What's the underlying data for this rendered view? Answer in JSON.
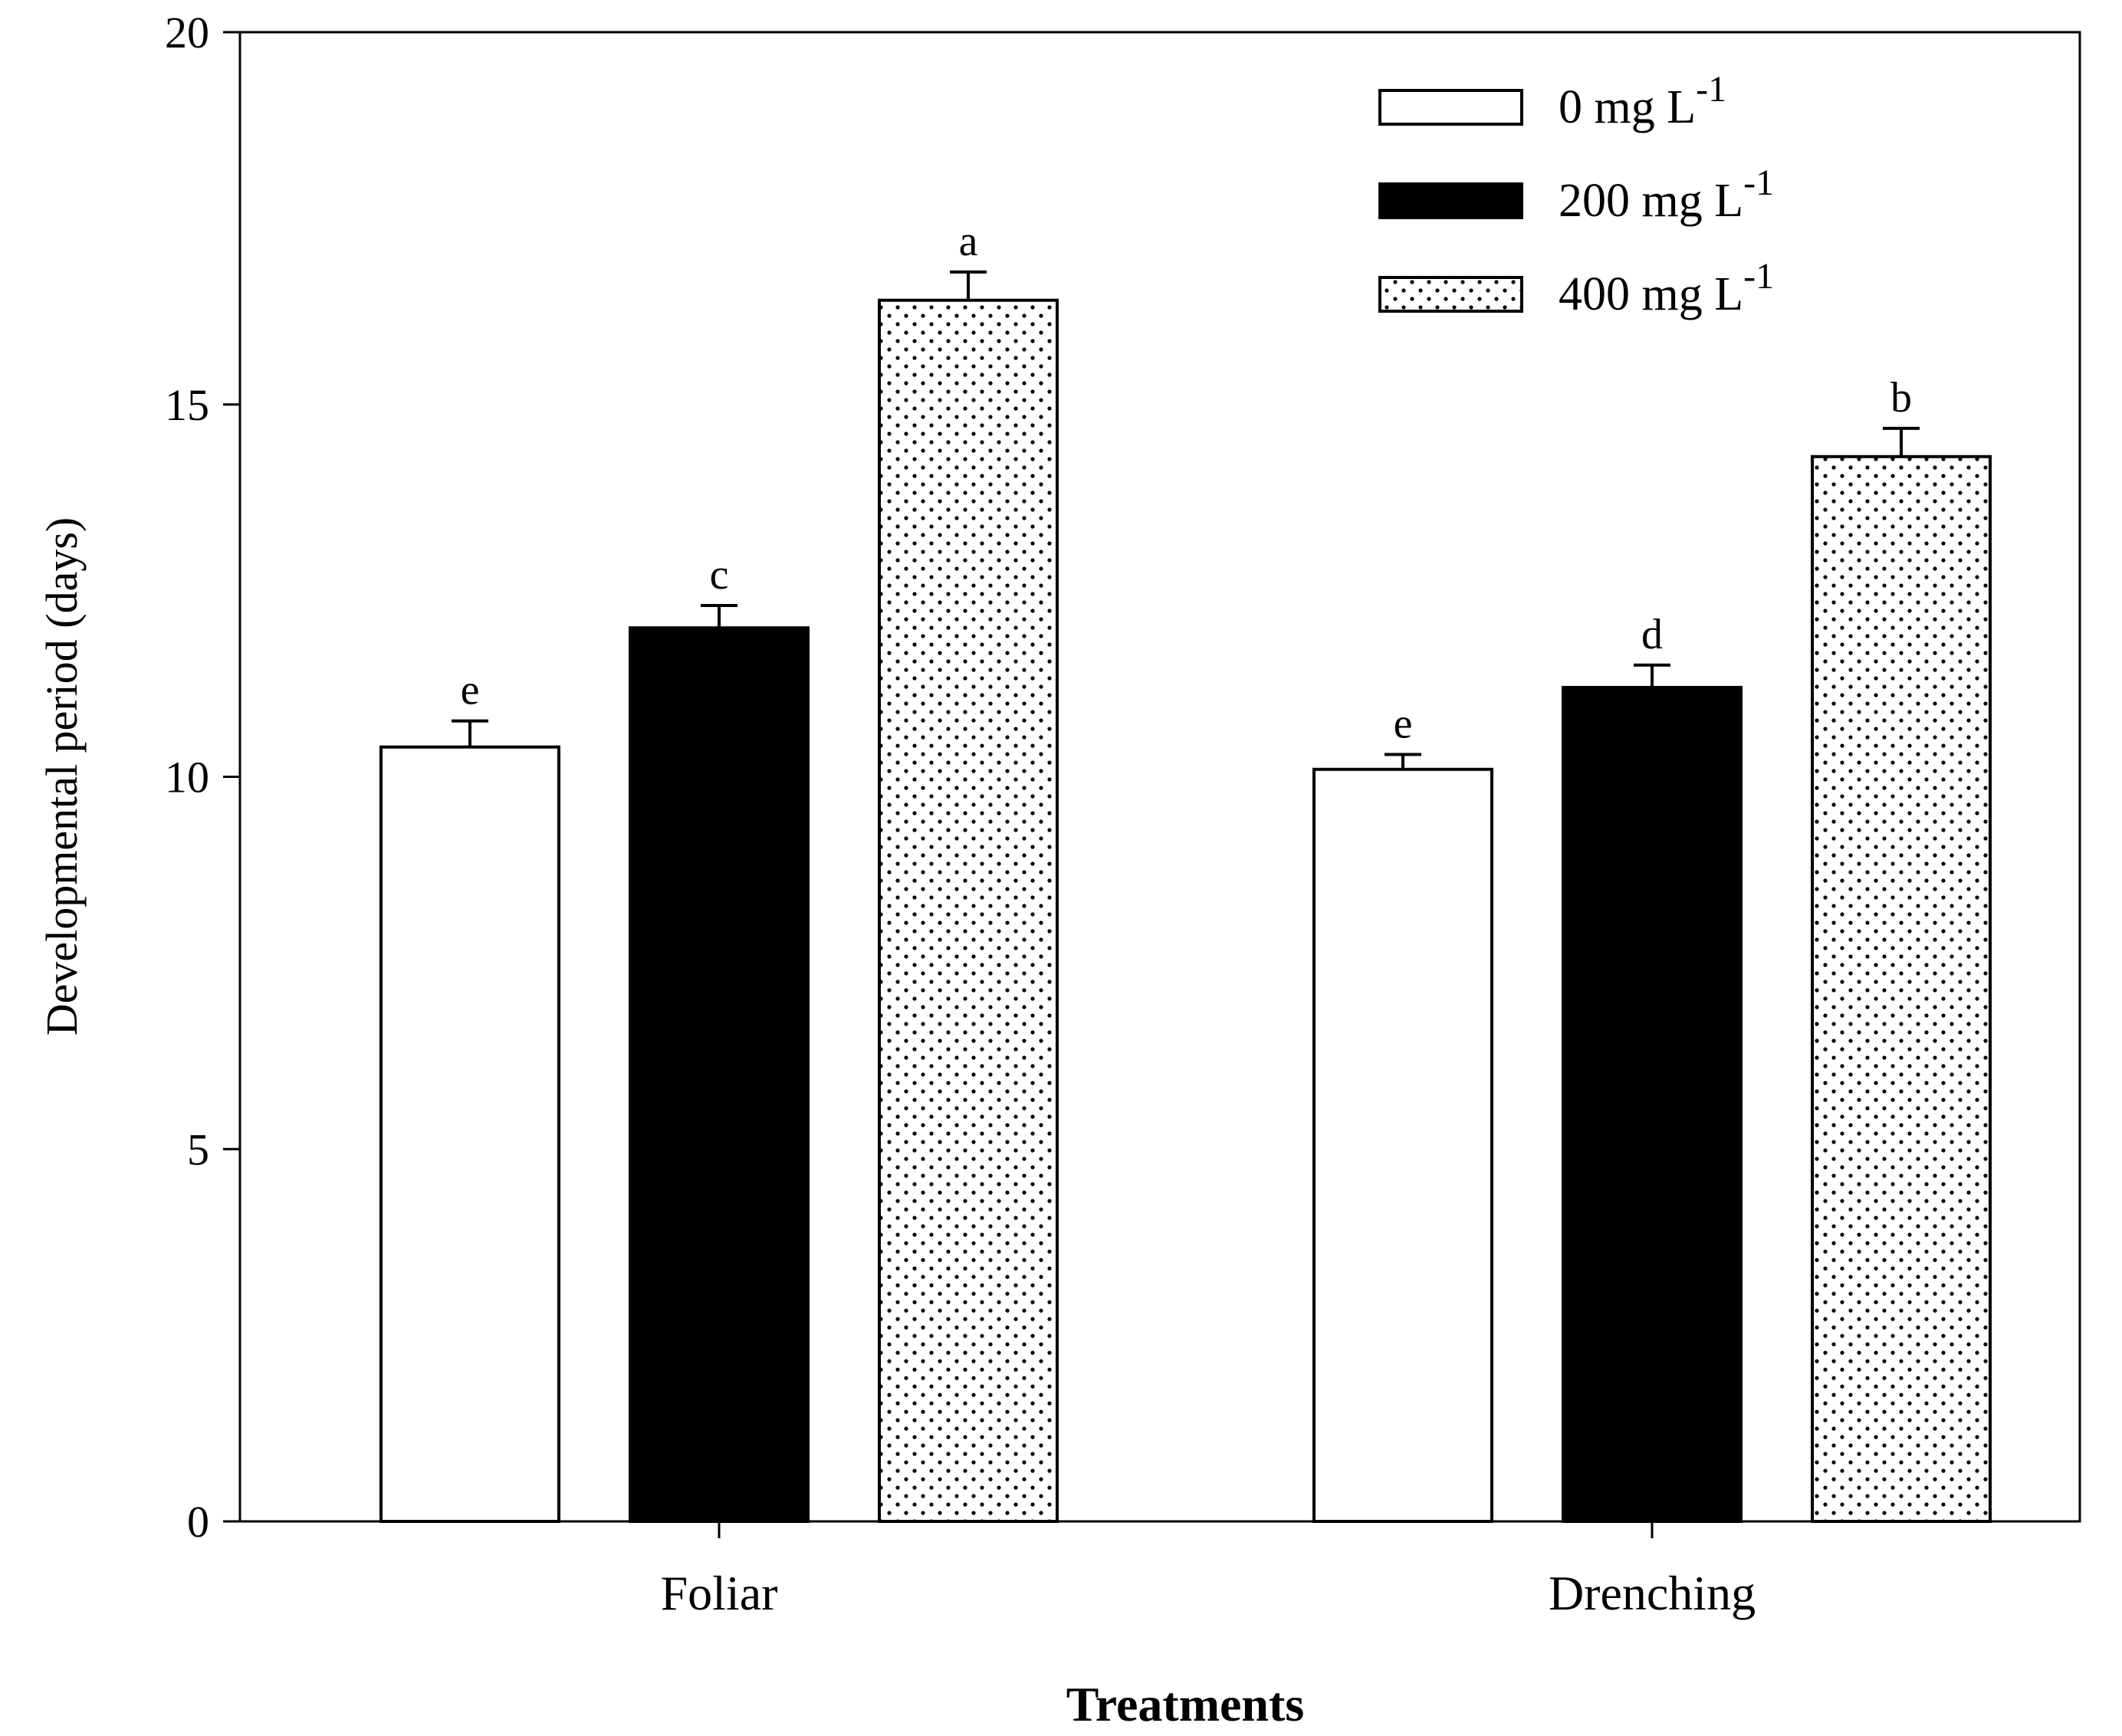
{
  "chart_data": {
    "type": "bar",
    "title": "",
    "xlabel": "Treatments",
    "ylabel": "Developmental period (days)",
    "ylim": [
      0,
      20
    ],
    "yticks": [
      0,
      5,
      10,
      15,
      20
    ],
    "categories": [
      "Foliar",
      "Drenching"
    ],
    "series": [
      {
        "name": "0 mg L",
        "superscript": "-1",
        "pattern": "white",
        "values": [
          10.4,
          10.1
        ],
        "errors": [
          0.35,
          0.2
        ],
        "letters": [
          "e",
          "e"
        ]
      },
      {
        "name": "200 mg L",
        "superscript": "-1",
        "pattern": "black",
        "values": [
          12.0,
          11.2
        ],
        "errors": [
          0.3,
          0.3
        ],
        "letters": [
          "c",
          "d"
        ]
      },
      {
        "name": "400 mg L",
        "superscript": "-1",
        "pattern": "dotted",
        "values": [
          16.4,
          14.3
        ],
        "errors": [
          0.38,
          0.38
        ],
        "letters": [
          "a",
          "b"
        ]
      }
    ],
    "legend": "top-right",
    "grid": false
  }
}
